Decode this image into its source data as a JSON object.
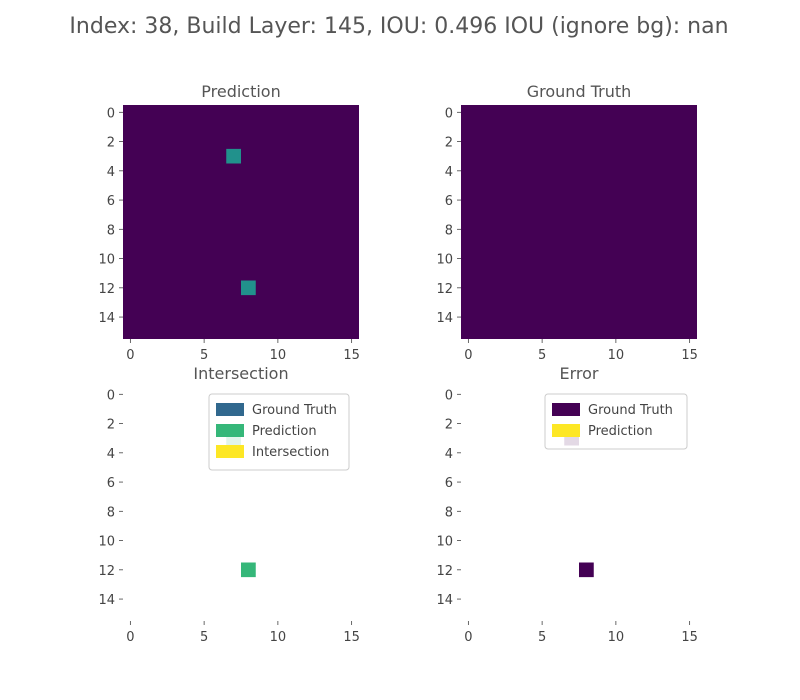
{
  "figure_title": "Index: 38, Build Layer: 145, IOU: 0.496 IOU (ignore bg): nan",
  "colors": {
    "background_cell": "#440154",
    "prediction_cell": "#21918c",
    "legend_ground_truth": "#31688e",
    "legend_prediction": "#35b779",
    "legend_intersection": "#fde725",
    "error_ground_truth": "#440154",
    "error_prediction": "#fde725",
    "axis_text": "#444444",
    "title_text": "#555555"
  },
  "chart_data": [
    {
      "type": "heatmap",
      "title": "Prediction",
      "grid_size": [
        16,
        16
      ],
      "xlim": [
        -0.5,
        15.5
      ],
      "ylim": [
        15.5,
        -0.5
      ],
      "xticks": [
        "0",
        "5",
        "10",
        "15"
      ],
      "yticks": [
        "0",
        "2",
        "4",
        "6",
        "8",
        "10",
        "12",
        "14"
      ],
      "background": "#440154",
      "cells": [
        {
          "x": 7,
          "y": 3,
          "color": "#21918c"
        },
        {
          "x": 8,
          "y": 12,
          "color": "#21918c"
        }
      ]
    },
    {
      "type": "heatmap",
      "title": "Ground Truth",
      "grid_size": [
        16,
        16
      ],
      "xlim": [
        -0.5,
        15.5
      ],
      "ylim": [
        15.5,
        -0.5
      ],
      "xticks": [
        "0",
        "5",
        "10",
        "15"
      ],
      "yticks": [
        "0",
        "2",
        "4",
        "6",
        "8",
        "10",
        "12",
        "14"
      ],
      "background": "#440154",
      "cells": []
    },
    {
      "type": "heatmap",
      "title": "Intersection",
      "grid_size": [
        16,
        16
      ],
      "xlim": [
        -0.5,
        15.5
      ],
      "ylim": [
        15.5,
        -0.5
      ],
      "xticks": [
        "0",
        "5",
        "10",
        "15"
      ],
      "yticks": [
        "0",
        "2",
        "4",
        "6",
        "8",
        "10",
        "12",
        "14"
      ],
      "background": "#ffffff",
      "cells": [
        {
          "x": 7,
          "y": 3,
          "color": "#35b779"
        },
        {
          "x": 8,
          "y": 12,
          "color": "#35b779"
        }
      ],
      "legend": {
        "placement": "upper right",
        "entries": [
          {
            "label": "Ground Truth",
            "color": "#31688e"
          },
          {
            "label": "Prediction",
            "color": "#35b779"
          },
          {
            "label": "Intersection",
            "color": "#fde725"
          }
        ]
      }
    },
    {
      "type": "heatmap",
      "title": "Error",
      "grid_size": [
        16,
        16
      ],
      "xlim": [
        -0.5,
        15.5
      ],
      "ylim": [
        15.5,
        -0.5
      ],
      "xticks": [
        "0",
        "5",
        "10",
        "15"
      ],
      "yticks": [
        "0",
        "2",
        "4",
        "6",
        "8",
        "10",
        "12",
        "14"
      ],
      "background": "#ffffff",
      "cells": [
        {
          "x": 7,
          "y": 3,
          "color": "#440154"
        },
        {
          "x": 8,
          "y": 12,
          "color": "#440154"
        }
      ],
      "legend": {
        "placement": "upper right",
        "entries": [
          {
            "label": "Ground Truth",
            "color": "#440154"
          },
          {
            "label": "Prediction",
            "color": "#fde725"
          }
        ]
      }
    }
  ]
}
